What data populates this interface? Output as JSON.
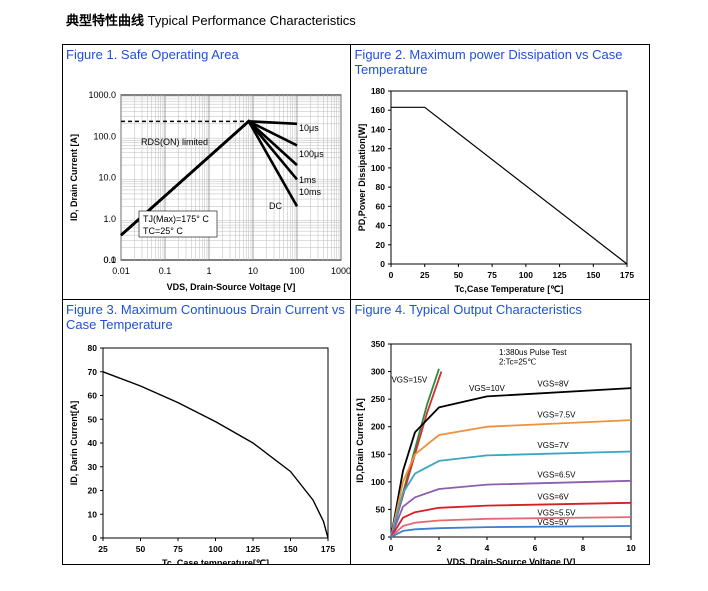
{
  "header": {
    "cn": "典型特性曲线",
    "en": "Typical Performance Characteristics"
  },
  "figures": [
    {
      "caption": "Figure 1. Safe Operating Area"
    },
    {
      "caption": "Figure 2. Maximum power Dissipation vs Case Temperature"
    },
    {
      "caption": "Figure 3. Maximum Continuous Drain Current vs Case Temperature"
    },
    {
      "caption": "Figure 4. Typical Output Characteristics"
    }
  ],
  "chart_data": [
    {
      "type": "line",
      "xscale": "log",
      "yscale": "log",
      "xlabel": "VDS, Drain-Source Voltage [V]",
      "ylabel": "ID, Drain Current [A]",
      "xticks": [
        "0.01",
        "0.1",
        "1",
        "10",
        "100",
        "1000"
      ],
      "yticks": [
        "0.0",
        "0.1",
        "1.0",
        "10.0",
        "100.0",
        "1000.0"
      ],
      "annotations": [
        "RDS(ON) limited",
        "10μs",
        "100μs",
        "1ms",
        "10ms",
        "DC",
        "TJ(Max)=175° C",
        "TC=25° C"
      ],
      "series": [
        {
          "name": "DC",
          "x": [
            0.01,
            8,
            100
          ],
          "y": [
            0.4,
            230,
            2
          ]
        },
        {
          "name": "10ms",
          "x": [
            0.01,
            8,
            100
          ],
          "y": [
            0.4,
            230,
            9
          ]
        },
        {
          "name": "1ms",
          "x": [
            0.01,
            8,
            100
          ],
          "y": [
            0.4,
            230,
            20
          ]
        },
        {
          "name": "100μs",
          "x": [
            0.01,
            8,
            100
          ],
          "y": [
            0.4,
            230,
            60
          ]
        },
        {
          "name": "10μs",
          "x": [
            0.01,
            8,
            100
          ],
          "y": [
            0.4,
            230,
            200
          ]
        }
      ]
    },
    {
      "type": "line",
      "xlabel": "Tc,Case Temperature [℃]",
      "ylabel": "PD,Power Dissipation[W]",
      "xlim": [
        0,
        175
      ],
      "ylim": [
        0,
        180
      ],
      "xticks": [
        "0",
        "25",
        "50",
        "75",
        "100",
        "125",
        "150",
        "175"
      ],
      "yticks": [
        "0",
        "20",
        "40",
        "60",
        "80",
        "100",
        "120",
        "140",
        "160",
        "180"
      ],
      "series": [
        {
          "x": [
            0,
            25,
            175
          ],
          "y": [
            163,
            163,
            0
          ]
        }
      ]
    },
    {
      "type": "line",
      "xlabel": "Tc, Case temperature[℃]",
      "ylabel": "ID, Darin Current[A]",
      "xlim": [
        25,
        175
      ],
      "ylim": [
        0,
        80
      ],
      "xticks": [
        "25",
        "50",
        "75",
        "100",
        "125",
        "150",
        "175"
      ],
      "yticks": [
        "0",
        "10",
        "20",
        "30",
        "40",
        "50",
        "60",
        "70",
        "80"
      ],
      "series": [
        {
          "x": [
            25,
            50,
            75,
            100,
            125,
            150,
            165,
            172,
            175
          ],
          "y": [
            70,
            64,
            57,
            49,
            40,
            28,
            16,
            7,
            0
          ]
        }
      ]
    },
    {
      "type": "line",
      "xlabel": "VDS, Drain-Source Voltage [V]",
      "ylabel": "ID,Drain Current [A]",
      "xlim": [
        0,
        10
      ],
      "ylim": [
        0,
        350
      ],
      "xticks": [
        "0",
        "2",
        "4",
        "6",
        "8",
        "10"
      ],
      "yticks": [
        "0",
        "50",
        "100",
        "150",
        "200",
        "250",
        "300",
        "350"
      ],
      "notes": [
        "1:380us Pulse Test",
        "2:Tc=25℃"
      ],
      "series": [
        {
          "name": "VGS=15V",
          "color": "#2e8b3e",
          "x": [
            0,
            0.5,
            1,
            1.5,
            2
          ],
          "y": [
            0,
            80,
            160,
            240,
            305
          ]
        },
        {
          "name": "VGS=10V",
          "color": "#d03030",
          "x": [
            0,
            0.5,
            1,
            1.5,
            2.1
          ],
          "y": [
            0,
            75,
            150,
            225,
            300
          ]
        },
        {
          "name": "VGS=8V",
          "color": "#000000",
          "x": [
            0,
            0.5,
            1,
            2,
            4,
            10
          ],
          "y": [
            0,
            120,
            190,
            235,
            255,
            270
          ]
        },
        {
          "name": "VGS=7.5V",
          "color": "#f0903a",
          "x": [
            0,
            0.5,
            1,
            2,
            4,
            10
          ],
          "y": [
            0,
            100,
            150,
            185,
            200,
            212
          ]
        },
        {
          "name": "VGS=7V",
          "color": "#3aa6c0",
          "x": [
            0,
            0.5,
            1,
            2,
            4,
            10
          ],
          "y": [
            0,
            80,
            115,
            138,
            148,
            155
          ]
        },
        {
          "name": "VGS=6.5V",
          "color": "#8a5fb0",
          "x": [
            0,
            0.5,
            1,
            2,
            4,
            10
          ],
          "y": [
            0,
            55,
            72,
            87,
            95,
            102
          ]
        },
        {
          "name": "VGS=6V",
          "color": "#d42020",
          "x": [
            0,
            0.5,
            1,
            2,
            4,
            10
          ],
          "y": [
            0,
            35,
            45,
            53,
            57,
            62
          ]
        },
        {
          "name": "VGS=5.5V",
          "color": "#e26a78",
          "x": [
            0,
            0.5,
            1,
            2,
            4,
            10
          ],
          "y": [
            0,
            20,
            26,
            30,
            33,
            36
          ]
        },
        {
          "name": "VGS=5V",
          "color": "#3f7fd0",
          "x": [
            0,
            0.5,
            1,
            2,
            4,
            10
          ],
          "y": [
            0,
            11,
            14,
            16,
            18,
            20
          ]
        }
      ]
    }
  ]
}
